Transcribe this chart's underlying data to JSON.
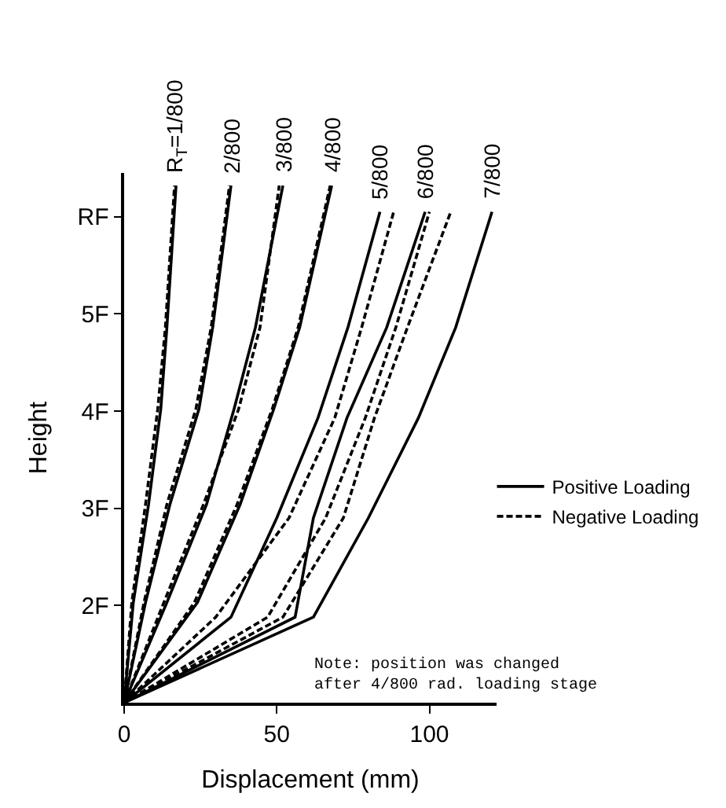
{
  "chart_data": {
    "type": "line",
    "xlabel": "Displacement (mm)",
    "ylabel": "Height",
    "xlim": [
      0,
      122
    ],
    "xticks": [
      0,
      50,
      100
    ],
    "ylim": [
      1,
      6.45
    ],
    "yticks": [
      {
        "value": 2,
        "label": "2F"
      },
      {
        "value": 3,
        "label": "3F"
      },
      {
        "value": 4,
        "label": "4F"
      },
      {
        "value": 5,
        "label": "5F"
      },
      {
        "value": 6,
        "label": "RF"
      }
    ],
    "legend": "right",
    "marker": "none",
    "series": [
      {
        "name": "Positive Loading",
        "color": "#000000",
        "line_style": "solid",
        "x": [
          0,
          3,
          8,
          12,
          14,
          17
        ],
        "values": [
          1,
          2.03,
          3.04,
          4.02,
          4.86,
          6.32
        ]
      },
      {
        "name": "Negative Loading",
        "color": "#000000",
        "line_style": "dashed",
        "x": [
          0,
          2.5,
          7,
          11,
          13.5,
          16.5
        ],
        "values": [
          1,
          2.03,
          3.04,
          4.02,
          4.86,
          6.32
        ]
      },
      {
        "color": "#000000",
        "line_style": "solid",
        "x": [
          0,
          7,
          15,
          24.5,
          29,
          35
        ],
        "values": [
          1,
          2.03,
          3.04,
          4.02,
          4.86,
          6.32
        ]
      },
      {
        "color": "#000000",
        "line_style": "dashed",
        "x": [
          0,
          6.5,
          14,
          23.5,
          28.5,
          34.5
        ],
        "values": [
          1,
          2.03,
          3.04,
          4.02,
          4.86,
          6.32
        ]
      },
      {
        "color": "#000000",
        "line_style": "solid",
        "x": [
          0,
          14,
          27,
          36,
          43,
          52
        ],
        "values": [
          1,
          2.03,
          3.04,
          4.02,
          4.86,
          6.32
        ]
      },
      {
        "color": "#000000",
        "line_style": "dashed",
        "x": [
          0,
          13,
          26,
          37.5,
          44.5,
          50.8
        ],
        "values": [
          1,
          2.03,
          3.04,
          4.02,
          4.86,
          6.32
        ]
      },
      {
        "color": "#000000",
        "line_style": "solid",
        "x": [
          0,
          24,
          38,
          49,
          57.5,
          68
        ],
        "values": [
          1,
          2.03,
          3.04,
          4.02,
          4.86,
          6.32
        ]
      },
      {
        "color": "#000000",
        "line_style": "dashed",
        "x": [
          0,
          23,
          37,
          48.5,
          57,
          67.5
        ],
        "values": [
          1,
          2.03,
          3.04,
          4.02,
          4.86,
          6.32
        ]
      },
      {
        "color": "#000000",
        "line_style": "solid",
        "x": [
          0,
          35,
          50,
          63.5,
          73.3,
          83.8
        ],
        "values": [
          1,
          1.88,
          2.9,
          3.93,
          4.86,
          6.05
        ]
      },
      {
        "color": "#000000",
        "line_style": "dashed",
        "x": [
          0,
          30,
          54,
          69,
          77.8,
          88.3
        ],
        "values": [
          1,
          1.88,
          2.9,
          3.93,
          4.86,
          6.05
        ]
      },
      {
        "color": "#000000",
        "line_style": "solid",
        "x": [
          0,
          56,
          62,
          73,
          86,
          98.6
        ],
        "values": [
          1,
          1.88,
          2.9,
          3.93,
          4.86,
          6.05
        ]
      },
      {
        "color": "#000000",
        "line_style": "dashed",
        "x": [
          0,
          47,
          66,
          79,
          89,
          100
        ],
        "values": [
          1,
          1.88,
          2.9,
          3.93,
          4.86,
          6.05
        ]
      },
      {
        "color": "#000000",
        "line_style": "dashed",
        "x": [
          0,
          52,
          71.8,
          82,
          92.8,
          107
        ],
        "values": [
          1,
          1.88,
          2.9,
          3.93,
          4.86,
          6.05
        ]
      },
      {
        "color": "#000000",
        "line_style": "solid",
        "x": [
          0,
          62,
          80,
          96.4,
          108.6,
          120.5
        ],
        "values": [
          1,
          1.88,
          2.9,
          3.93,
          4.86,
          6.05
        ]
      }
    ],
    "annotations": [
      {
        "text": "R$_{T}$=1/800",
        "x": 17,
        "y": 6.32
      },
      {
        "text": "2/800",
        "x": 35,
        "y": 6.32
      },
      {
        "text": "3/800",
        "x": 52,
        "y": 6.32
      },
      {
        "text": "4/800",
        "x": 68,
        "y": 6.32
      },
      {
        "text": "5/800",
        "x": 83.8,
        "y": 6.05
      },
      {
        "text": "6/800",
        "x": 98.6,
        "y": 6.05
      },
      {
        "text": "7/800",
        "x": 120.5,
        "y": 6.05
      },
      "Note: position was changed\nafter 4/800 rad. loading stage"
    ]
  }
}
